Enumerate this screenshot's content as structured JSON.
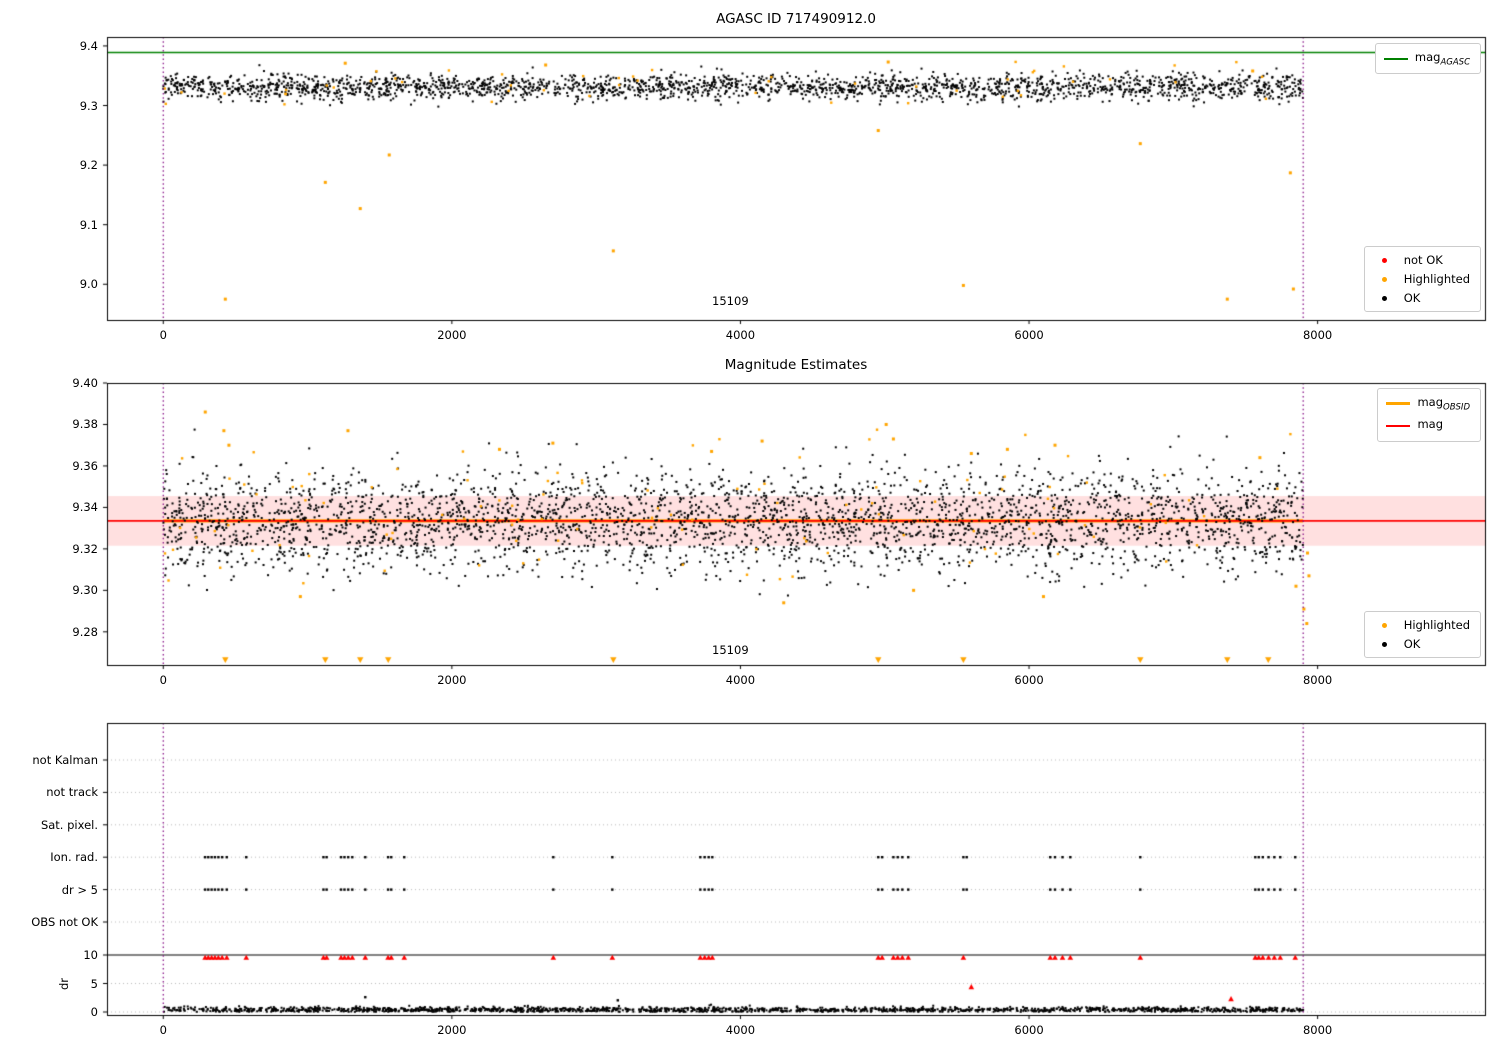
{
  "figure": {
    "background": "#ffffff"
  },
  "chart_data": [
    {
      "id": "agasc_overview",
      "type": "scatter",
      "title": "AGASC ID 717490912.0",
      "xlim": [
        -390,
        9160
      ],
      "ylim": [
        8.94,
        9.415
      ],
      "xticks": [
        0,
        2000,
        4000,
        6000,
        8000
      ],
      "xtick_labels": [
        "0",
        "2000",
        "4000",
        "6000",
        "8000"
      ],
      "yticks": [
        9.0,
        9.1,
        9.2,
        9.3,
        9.4
      ],
      "ytick_labels": [
        "9.0",
        "9.1",
        "9.2",
        "9.3",
        "9.4"
      ],
      "hlines": [
        {
          "y": 9.389,
          "color": "#008000",
          "width": 1.6
        }
      ],
      "vlines": {
        "xs": [
          0,
          7900
        ],
        "color": "#800080"
      },
      "annotation": {
        "text": "15109",
        "x": 3930
      },
      "legend_line": {
        "items": [
          {
            "main": "mag",
            "sub": "AGASC",
            "color": "#008000"
          }
        ]
      },
      "legend_markers": {
        "items": [
          {
            "label": "not OK",
            "color": "#ff0000"
          },
          {
            "label": "Highlighted",
            "color": "#ffa500"
          },
          {
            "label": "OK",
            "color": "#000000"
          }
        ]
      },
      "series": [
        {
          "name": "OK",
          "kind": "cluster",
          "color": "#000000",
          "n": 2300,
          "seed": 11,
          "x_range": [
            0,
            7900
          ],
          "y_mean": 9.331,
          "y_sd": 0.011,
          "y_clip": [
            9.294,
            9.377
          ],
          "size": 1.0
        },
        {
          "name": "Highlighted band",
          "kind": "cluster",
          "color": "#ffa500",
          "n": 50,
          "seed": 12,
          "x_range": [
            0,
            7900
          ],
          "y_mean": 9.34,
          "y_sd": 0.017,
          "y_clip": [
            9.302,
            9.376
          ],
          "size": 1.2
        },
        {
          "name": "Highlighted outliers",
          "kind": "points",
          "color": "#ffa500",
          "size": 1.5,
          "points": [
            [
              430,
              8.975
            ],
            [
              1123,
              9.171
            ],
            [
              1365,
              9.127
            ],
            [
              1566,
              9.217
            ],
            [
              3119,
              9.056
            ],
            [
              4955,
              9.258
            ],
            [
              5545,
              8.998
            ],
            [
              6771,
              9.236
            ],
            [
              7374,
              8.975
            ],
            [
              7811,
              9.187
            ],
            [
              7832,
              8.992
            ],
            [
              1261,
              9.371
            ],
            [
              5024,
              9.373
            ],
            [
              2650,
              9.368
            ],
            [
              7550,
              9.358
            ]
          ]
        }
      ]
    },
    {
      "id": "mag_estimates",
      "type": "scatter",
      "title": "Magnitude Estimates",
      "xlim": [
        -390,
        9160
      ],
      "ylim": [
        9.264,
        9.4
      ],
      "xticks": [
        0,
        2000,
        4000,
        6000,
        8000
      ],
      "xtick_labels": [
        "0",
        "2000",
        "4000",
        "6000",
        "8000"
      ],
      "yticks": [
        9.28,
        9.3,
        9.32,
        9.34,
        9.36,
        9.38,
        9.4
      ],
      "ytick_labels": [
        "9.28",
        "9.30",
        "9.32",
        "9.34",
        "9.36",
        "9.38",
        "9.40"
      ],
      "band": {
        "y1": 9.3215,
        "y2": 9.3455,
        "color": "rgba(255,0,0,0.12)"
      },
      "hlines": [
        {
          "y": 9.3335,
          "color": "#ffa500",
          "width": 3.2,
          "x_range": [
            0,
            7900
          ]
        },
        {
          "y": 9.3335,
          "color": "#ff0000",
          "width": 1.7
        }
      ],
      "vlines": {
        "xs": [
          0,
          7900
        ],
        "color": "#800080"
      },
      "annotation": {
        "text": "15109",
        "x": 3930
      },
      "legend_line": {
        "items": [
          {
            "main": "mag",
            "sub": "OBSID",
            "color": "#ffa500"
          },
          {
            "main": "mag",
            "sub": "",
            "color": "#ff0000"
          }
        ]
      },
      "legend_markers": {
        "items": [
          {
            "label": "Highlighted",
            "color": "#ffa500"
          },
          {
            "label": "OK",
            "color": "#000000"
          }
        ]
      },
      "series": [
        {
          "name": "OK",
          "kind": "cluster",
          "color": "#000000",
          "n": 3200,
          "seed": 21,
          "x_range": [
            0,
            7900
          ],
          "y_mean": 9.3335,
          "y_sd": 0.0125,
          "y_clip": [
            9.297,
            9.378
          ],
          "size": 1.0
        },
        {
          "name": "Highlighted band",
          "kind": "cluster",
          "color": "#ffa500",
          "n": 110,
          "seed": 22,
          "x_range": [
            0,
            7900
          ],
          "y_mean": 9.337,
          "y_sd": 0.019,
          "y_clip": [
            9.299,
            9.385
          ],
          "size": 1.2
        },
        {
          "name": "Highlighted outliers",
          "kind": "points",
          "color": "#ffa500",
          "size": 1.5,
          "points": [
            [
              291,
              9.386
            ],
            [
              420,
              9.377
            ],
            [
              455,
              9.37
            ],
            [
              1280,
              9.377
            ],
            [
              2330,
              9.368
            ],
            [
              2700,
              9.371
            ],
            [
              3800,
              9.367
            ],
            [
              4150,
              9.372
            ],
            [
              5010,
              9.38
            ],
            [
              5060,
              9.373
            ],
            [
              5600,
              9.366
            ],
            [
              5850,
              9.368
            ],
            [
              6180,
              9.37
            ],
            [
              7600,
              9.364
            ],
            [
              950,
              9.297
            ],
            [
              4300,
              9.294
            ],
            [
              5200,
              9.3
            ],
            [
              6100,
              9.297
            ],
            [
              7850,
              9.302
            ],
            [
              7905,
              9.291
            ],
            [
              7925,
              9.284
            ],
            [
              7940,
              9.307
            ],
            [
              7930,
              9.318
            ]
          ]
        },
        {
          "name": "Highlighted clipped low",
          "kind": "triangles_down",
          "color": "#ffa500",
          "y": 9.2665,
          "xs": [
            430,
            1123,
            1365,
            1559,
            3119,
            4955,
            5545,
            6771,
            7374,
            7658
          ]
        }
      ]
    },
    {
      "id": "flags_and_dr",
      "type": "scatter",
      "title": "",
      "xlim": [
        -390,
        9160
      ],
      "xticks": [
        0,
        2000,
        4000,
        6000,
        8000
      ],
      "xtick_labels": [
        "0",
        "2000",
        "4000",
        "6000",
        "8000"
      ],
      "categories": [
        "not Kalman",
        "not track",
        "Sat. pixel.",
        "Ion. rad.",
        "dr > 5",
        "OBS not OK"
      ],
      "ylabel": "dr",
      "dr_ticks": [
        10,
        5,
        0
      ],
      "dr_tick_labels": [
        "10",
        "5",
        "0"
      ],
      "dr_limit_line": {
        "y": 10,
        "color": "#000000"
      },
      "vlines": {
        "xs": [
          0,
          7900
        ],
        "color": "#800080"
      },
      "flag_color": "#000000",
      "red_color": "#ff0000",
      "flags": {
        "ion_rad_x": [
          290,
          312,
          335,
          358,
          382,
          408,
          440,
          575,
          1110,
          1132,
          1232,
          1256,
          1282,
          1310,
          1400,
          1558,
          1580,
          1670,
          2703,
          3112,
          3722,
          3752,
          3780,
          3805,
          4955,
          4982,
          5060,
          5090,
          5122,
          5163,
          5545,
          5568,
          6147,
          6180,
          6232,
          6286,
          6771,
          7568,
          7592,
          7620,
          7660,
          7700,
          7741,
          7845
        ],
        "dr5_x": [
          290,
          312,
          335,
          358,
          382,
          408,
          440,
          575,
          1110,
          1132,
          1232,
          1256,
          1282,
          1310,
          1400,
          1558,
          1580,
          1670,
          2703,
          3112,
          3722,
          3752,
          3780,
          3805,
          4955,
          4982,
          5060,
          5090,
          5122,
          5163,
          5545,
          5568,
          6147,
          6180,
          6232,
          6286,
          6771,
          7568,
          7592,
          7620,
          7660,
          7700,
          7741,
          7845
        ]
      },
      "dr_base": {
        "n": 1700,
        "seed": 31,
        "mean": 0.33,
        "sd": 0.27,
        "clip": [
          0.03,
          1.55
        ],
        "x_range": [
          0,
          7900
        ],
        "color": "#000000",
        "size": 1.0
      },
      "dr_black_outliers": [
        [
          1400,
          2.6
        ],
        [
          3150,
          2.05
        ]
      ],
      "dr_red_clipped_x": [
        290,
        312,
        335,
        358,
        382,
        408,
        440,
        575,
        1110,
        1132,
        1232,
        1256,
        1282,
        1310,
        1400,
        1558,
        1580,
        1670,
        2703,
        3112,
        3722,
        3752,
        3780,
        3805,
        4955,
        4982,
        5060,
        5090,
        5122,
        5163,
        5545,
        6147,
        6180,
        6232,
        6286,
        6771,
        7568,
        7592,
        7620,
        7660,
        7700,
        7741,
        7845
      ],
      "dr_red_points": [
        [
          5600,
          4.4
        ],
        [
          7400,
          2.3
        ]
      ]
    }
  ]
}
